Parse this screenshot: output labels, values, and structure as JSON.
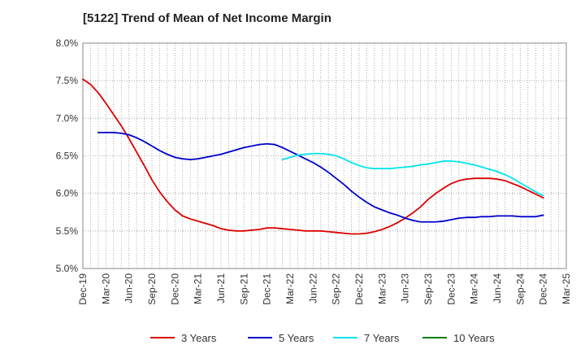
{
  "chart_data": {
    "type": "line",
    "title": "[5122]  Trend of Mean of Net Income Margin",
    "xlabel": "",
    "ylabel": "",
    "x_ticks": [
      "Dec-19",
      "Mar-20",
      "Jun-20",
      "Sep-20",
      "Dec-20",
      "Mar-21",
      "Jun-21",
      "Sep-21",
      "Dec-21",
      "Mar-22",
      "Jun-22",
      "Sep-22",
      "Dec-22",
      "Mar-23",
      "Jun-23",
      "Sep-23",
      "Dec-23",
      "Mar-24",
      "Jun-24",
      "Sep-24",
      "Dec-24",
      "Mar-25"
    ],
    "y_ticks": [
      "5.0%",
      "5.5%",
      "6.0%",
      "6.5%",
      "7.0%",
      "7.5%",
      "8.0%"
    ],
    "ylim": [
      5.0,
      8.0
    ],
    "grid": true,
    "legend_position": "bottom",
    "series": [
      {
        "name": "3 Years",
        "color": "#dd0000",
        "points": [
          [
            "Dec-19",
            7.52
          ],
          [
            "Jan-20",
            7.45
          ],
          [
            "Feb-20",
            7.34
          ],
          [
            "Mar-20",
            7.2
          ],
          [
            "Apr-20",
            7.05
          ],
          [
            "May-20",
            6.9
          ],
          [
            "Jun-20",
            6.73
          ],
          [
            "Jul-20",
            6.55
          ],
          [
            "Aug-20",
            6.37
          ],
          [
            "Sep-20",
            6.18
          ],
          [
            "Oct-20",
            6.02
          ],
          [
            "Nov-20",
            5.89
          ],
          [
            "Dec-20",
            5.78
          ],
          [
            "Jan-21",
            5.7
          ],
          [
            "Feb-21",
            5.66
          ],
          [
            "Mar-21",
            5.63
          ],
          [
            "Apr-21",
            5.6
          ],
          [
            "May-21",
            5.57
          ],
          [
            "Jun-21",
            5.53
          ],
          [
            "Jul-21",
            5.51
          ],
          [
            "Aug-21",
            5.5
          ],
          [
            "Sep-21",
            5.5
          ],
          [
            "Oct-21",
            5.51
          ],
          [
            "Nov-21",
            5.52
          ],
          [
            "Dec-21",
            5.54
          ],
          [
            "Jan-22",
            5.54
          ],
          [
            "Feb-22",
            5.53
          ],
          [
            "Mar-22",
            5.52
          ],
          [
            "Apr-22",
            5.51
          ],
          [
            "May-22",
            5.5
          ],
          [
            "Jun-22",
            5.5
          ],
          [
            "Jul-22",
            5.5
          ],
          [
            "Aug-22",
            5.49
          ],
          [
            "Sep-22",
            5.48
          ],
          [
            "Oct-22",
            5.47
          ],
          [
            "Nov-22",
            5.46
          ],
          [
            "Dec-22",
            5.46
          ],
          [
            "Jan-23",
            5.47
          ],
          [
            "Feb-23",
            5.49
          ],
          [
            "Mar-23",
            5.52
          ],
          [
            "Apr-23",
            5.56
          ],
          [
            "May-23",
            5.61
          ],
          [
            "Jun-23",
            5.67
          ],
          [
            "Jul-23",
            5.74
          ],
          [
            "Aug-23",
            5.82
          ],
          [
            "Sep-23",
            5.92
          ],
          [
            "Oct-23",
            6.0
          ],
          [
            "Nov-23",
            6.07
          ],
          [
            "Dec-23",
            6.13
          ],
          [
            "Jan-24",
            6.17
          ],
          [
            "Feb-24",
            6.19
          ],
          [
            "Mar-24",
            6.2
          ],
          [
            "Apr-24",
            6.2
          ],
          [
            "May-24",
            6.2
          ],
          [
            "Jun-24",
            6.19
          ],
          [
            "Jul-24",
            6.17
          ],
          [
            "Aug-24",
            6.13
          ],
          [
            "Sep-24",
            6.09
          ],
          [
            "Oct-24",
            6.04
          ],
          [
            "Nov-24",
            5.99
          ],
          [
            "Dec-24",
            5.94
          ]
        ]
      },
      {
        "name": "5 Years",
        "color": "#0000cc",
        "points": [
          [
            "Dec-19",
            null
          ],
          [
            "Jan-20",
            null
          ],
          [
            "Feb-20",
            6.81
          ],
          [
            "Mar-20",
            6.81
          ],
          [
            "Apr-20",
            6.81
          ],
          [
            "May-20",
            6.8
          ],
          [
            "Jun-20",
            6.78
          ],
          [
            "Jul-20",
            6.74
          ],
          [
            "Aug-20",
            6.69
          ],
          [
            "Sep-20",
            6.63
          ],
          [
            "Oct-20",
            6.57
          ],
          [
            "Nov-20",
            6.52
          ],
          [
            "Dec-20",
            6.48
          ],
          [
            "Jan-21",
            6.46
          ],
          [
            "Feb-21",
            6.45
          ],
          [
            "Mar-21",
            6.46
          ],
          [
            "Apr-21",
            6.48
          ],
          [
            "May-21",
            6.5
          ],
          [
            "Jun-21",
            6.52
          ],
          [
            "Jul-21",
            6.55
          ],
          [
            "Aug-21",
            6.58
          ],
          [
            "Sep-21",
            6.61
          ],
          [
            "Oct-21",
            6.63
          ],
          [
            "Nov-21",
            6.65
          ],
          [
            "Dec-21",
            6.66
          ],
          [
            "Jan-22",
            6.65
          ],
          [
            "Feb-22",
            6.61
          ],
          [
            "Mar-22",
            6.56
          ],
          [
            "Apr-22",
            6.51
          ],
          [
            "May-22",
            6.46
          ],
          [
            "Jun-22",
            6.41
          ],
          [
            "Jul-22",
            6.35
          ],
          [
            "Aug-22",
            6.28
          ],
          [
            "Sep-22",
            6.2
          ],
          [
            "Oct-22",
            6.12
          ],
          [
            "Nov-22",
            6.03
          ],
          [
            "Dec-22",
            5.95
          ],
          [
            "Jan-23",
            5.88
          ],
          [
            "Feb-23",
            5.82
          ],
          [
            "Mar-23",
            5.78
          ],
          [
            "Apr-23",
            5.74
          ],
          [
            "May-23",
            5.71
          ],
          [
            "Jun-23",
            5.67
          ],
          [
            "Jul-23",
            5.64
          ],
          [
            "Aug-23",
            5.62
          ],
          [
            "Sep-23",
            5.62
          ],
          [
            "Oct-23",
            5.62
          ],
          [
            "Nov-23",
            5.63
          ],
          [
            "Dec-23",
            5.65
          ],
          [
            "Jan-24",
            5.67
          ],
          [
            "Feb-24",
            5.68
          ],
          [
            "Mar-24",
            5.68
          ],
          [
            "Apr-24",
            5.69
          ],
          [
            "May-24",
            5.69
          ],
          [
            "Jun-24",
            5.7
          ],
          [
            "Jul-24",
            5.7
          ],
          [
            "Aug-24",
            5.7
          ],
          [
            "Sep-24",
            5.69
          ],
          [
            "Oct-24",
            5.69
          ],
          [
            "Nov-24",
            5.69
          ],
          [
            "Dec-24",
            5.71
          ]
        ]
      },
      {
        "name": "7 Years",
        "color": "#00e5ee",
        "points": [
          [
            "Feb-22",
            6.45
          ],
          [
            "Mar-22",
            6.48
          ],
          [
            "Apr-22",
            6.51
          ],
          [
            "May-22",
            6.52
          ],
          [
            "Jun-22",
            6.53
          ],
          [
            "Jul-22",
            6.53
          ],
          [
            "Aug-22",
            6.52
          ],
          [
            "Sep-22",
            6.5
          ],
          [
            "Oct-22",
            6.46
          ],
          [
            "Nov-22",
            6.41
          ],
          [
            "Dec-22",
            6.37
          ],
          [
            "Jan-23",
            6.34
          ],
          [
            "Feb-23",
            6.33
          ],
          [
            "Mar-23",
            6.33
          ],
          [
            "Apr-23",
            6.33
          ],
          [
            "May-23",
            6.34
          ],
          [
            "Jun-23",
            6.35
          ],
          [
            "Jul-23",
            6.36
          ],
          [
            "Aug-23",
            6.38
          ],
          [
            "Sep-23",
            6.39
          ],
          [
            "Oct-23",
            6.41
          ],
          [
            "Nov-23",
            6.43
          ],
          [
            "Dec-23",
            6.43
          ],
          [
            "Jan-24",
            6.42
          ],
          [
            "Feb-24",
            6.4
          ],
          [
            "Mar-24",
            6.38
          ],
          [
            "Apr-24",
            6.35
          ],
          [
            "May-24",
            6.32
          ],
          [
            "Jun-24",
            6.29
          ],
          [
            "Jul-24",
            6.25
          ],
          [
            "Aug-24",
            6.2
          ],
          [
            "Sep-24",
            6.14
          ],
          [
            "Oct-24",
            6.08
          ],
          [
            "Nov-24",
            6.02
          ],
          [
            "Dec-24",
            5.97
          ]
        ]
      },
      {
        "name": "10 Years",
        "color": "#008000",
        "points": []
      }
    ]
  }
}
